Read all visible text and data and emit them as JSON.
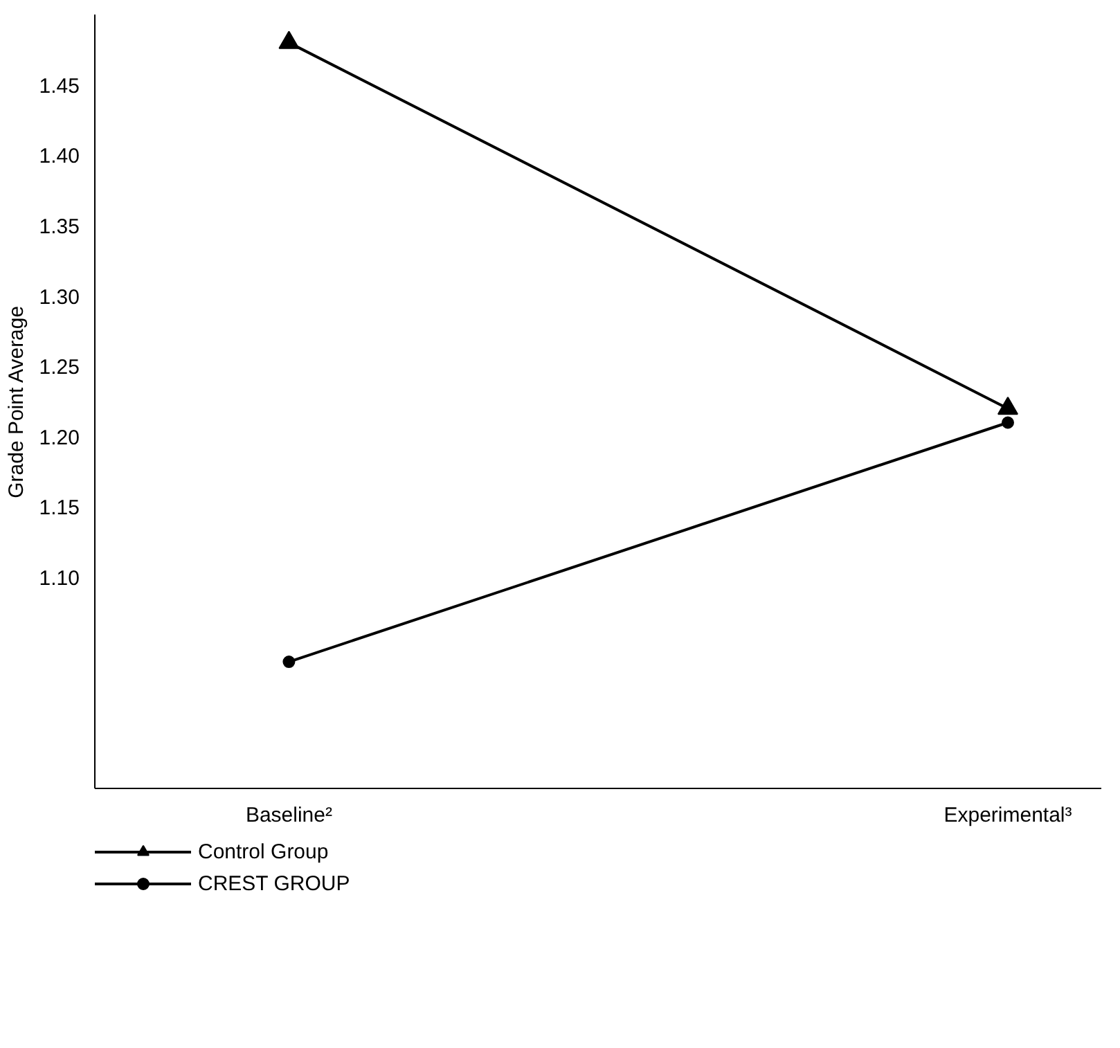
{
  "chart_data": {
    "type": "line",
    "ylabel": "Grade Point Average",
    "categories": [
      "Baseline²",
      "Experimental³"
    ],
    "series": [
      {
        "name": "Control Group",
        "color": "#000000",
        "marker": "triangle",
        "values": [
          1.48,
          1.22
        ]
      },
      {
        "name": "CREST GROUP",
        "color": "#000000",
        "marker": "circle",
        "values": [
          1.04,
          1.21
        ]
      }
    ],
    "ylim": [
      0.95,
      1.5
    ],
    "yticks": [
      {
        "value": 1.1,
        "label": "1.10"
      },
      1.15,
      {
        "value": 1.2,
        "label": "1.20"
      },
      1.25,
      {
        "value": 1.3,
        "label": "1.30"
      },
      1.35,
      {
        "value": 1.4,
        "label": "1.40"
      },
      1.45
    ],
    "grid": false,
    "legend": "bottom",
    "line_style": "solid"
  }
}
